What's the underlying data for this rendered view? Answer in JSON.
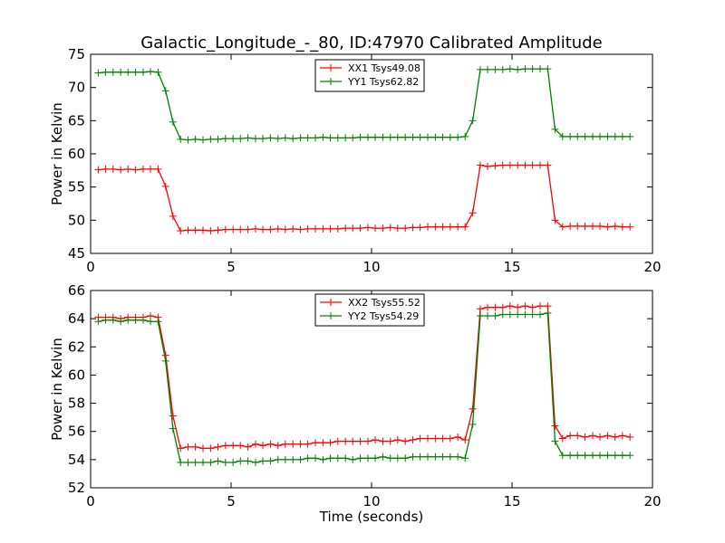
{
  "chart_data": [
    {
      "type": "line",
      "title": "Galactic_Longitude_-_80, ID:47970 Calibrated Amplitude",
      "xlabel": "",
      "ylabel": "Power in Kelvin",
      "xlim": [
        0,
        20
      ],
      "ylim": [
        45,
        75
      ],
      "xticks": [
        "0",
        "5",
        "10",
        "15",
        "20"
      ],
      "yticks": [
        "45",
        "50",
        "55",
        "60",
        "65",
        "70",
        "75"
      ],
      "grid": false,
      "legend_position": "top-center",
      "series": [
        {
          "name": "XX1 Tsys49.08",
          "color": "#ff0000",
          "x": [
            0.27,
            0.53,
            0.8,
            1.07,
            1.33,
            1.6,
            1.87,
            2.13,
            2.4,
            2.67,
            2.93,
            3.2,
            3.47,
            3.73,
            4.0,
            4.27,
            4.53,
            4.8,
            5.07,
            5.33,
            5.6,
            5.87,
            6.13,
            6.4,
            6.67,
            6.93,
            7.2,
            7.47,
            7.73,
            8.0,
            8.27,
            8.53,
            8.8,
            9.07,
            9.33,
            9.6,
            9.87,
            10.13,
            10.4,
            10.67,
            10.93,
            11.2,
            11.47,
            11.73,
            12.0,
            12.27,
            12.53,
            12.8,
            13.07,
            13.33,
            13.6,
            13.87,
            14.13,
            14.4,
            14.67,
            14.93,
            15.2,
            15.47,
            15.73,
            16.0,
            16.27,
            16.53,
            16.8,
            17.07,
            17.33,
            17.6,
            17.87,
            18.13,
            18.4,
            18.67,
            18.93,
            19.2
          ],
          "y": [
            57.6,
            57.7,
            57.7,
            57.6,
            57.7,
            57.6,
            57.7,
            57.7,
            57.7,
            55.1,
            50.6,
            48.4,
            48.5,
            48.5,
            48.5,
            48.4,
            48.5,
            48.6,
            48.6,
            48.6,
            48.6,
            48.7,
            48.6,
            48.6,
            48.7,
            48.6,
            48.7,
            48.6,
            48.7,
            48.7,
            48.7,
            48.7,
            48.7,
            48.8,
            48.8,
            48.8,
            48.9,
            48.8,
            48.8,
            48.9,
            48.8,
            48.8,
            48.9,
            48.9,
            49.0,
            49.0,
            49.0,
            49.0,
            49.0,
            49.0,
            51.1,
            58.3,
            58.1,
            58.2,
            58.3,
            58.3,
            58.3,
            58.3,
            58.3,
            58.3,
            58.3,
            50.0,
            49.0,
            49.1,
            49.1,
            49.1,
            49.1,
            49.1,
            49.0,
            49.1,
            49.0,
            49.0
          ]
        },
        {
          "name": "YY1 Tsys62.82",
          "color": "#008000",
          "x": [
            0.27,
            0.53,
            0.8,
            1.07,
            1.33,
            1.6,
            1.87,
            2.13,
            2.4,
            2.67,
            2.93,
            3.2,
            3.47,
            3.73,
            4.0,
            4.27,
            4.53,
            4.8,
            5.07,
            5.33,
            5.6,
            5.87,
            6.13,
            6.4,
            6.67,
            6.93,
            7.2,
            7.47,
            7.73,
            8.0,
            8.27,
            8.53,
            8.8,
            9.07,
            9.33,
            9.6,
            9.87,
            10.13,
            10.4,
            10.67,
            10.93,
            11.2,
            11.47,
            11.73,
            12.0,
            12.27,
            12.53,
            12.8,
            13.07,
            13.33,
            13.6,
            13.87,
            14.13,
            14.4,
            14.67,
            14.93,
            15.2,
            15.47,
            15.73,
            16.0,
            16.27,
            16.53,
            16.8,
            17.07,
            17.33,
            17.6,
            17.87,
            18.13,
            18.4,
            18.67,
            18.93,
            19.2
          ],
          "y": [
            72.2,
            72.3,
            72.3,
            72.3,
            72.3,
            72.3,
            72.3,
            72.4,
            72.3,
            69.5,
            64.8,
            62.2,
            62.1,
            62.2,
            62.1,
            62.2,
            62.2,
            62.3,
            62.3,
            62.3,
            62.4,
            62.3,
            62.3,
            62.4,
            62.3,
            62.4,
            62.3,
            62.4,
            62.4,
            62.4,
            62.5,
            62.4,
            62.4,
            62.4,
            62.4,
            62.5,
            62.5,
            62.5,
            62.5,
            62.5,
            62.5,
            62.5,
            62.5,
            62.5,
            62.5,
            62.5,
            62.5,
            62.5,
            62.5,
            62.6,
            65.0,
            72.7,
            72.7,
            72.7,
            72.7,
            72.8,
            72.7,
            72.8,
            72.8,
            72.8,
            72.8,
            63.7,
            62.6,
            62.6,
            62.6,
            62.6,
            62.6,
            62.6,
            62.6,
            62.6,
            62.6,
            62.6
          ]
        }
      ]
    },
    {
      "type": "line",
      "title": "",
      "xlabel": "Time (seconds)",
      "ylabel": "Power in Kelvin",
      "xlim": [
        0,
        20
      ],
      "ylim": [
        52,
        66
      ],
      "xticks": [
        "0",
        "5",
        "10",
        "15",
        "20"
      ],
      "yticks": [
        "52",
        "54",
        "56",
        "58",
        "60",
        "62",
        "64",
        "66"
      ],
      "grid": false,
      "legend_position": "top-center",
      "series": [
        {
          "name": "XX2 Tsys55.52",
          "color": "#ff0000",
          "x": [
            0.27,
            0.53,
            0.8,
            1.07,
            1.33,
            1.6,
            1.87,
            2.13,
            2.4,
            2.67,
            2.93,
            3.2,
            3.47,
            3.73,
            4.0,
            4.27,
            4.53,
            4.8,
            5.07,
            5.33,
            5.6,
            5.87,
            6.13,
            6.4,
            6.67,
            6.93,
            7.2,
            7.47,
            7.73,
            8.0,
            8.27,
            8.53,
            8.8,
            9.07,
            9.33,
            9.6,
            9.87,
            10.13,
            10.4,
            10.67,
            10.93,
            11.2,
            11.47,
            11.73,
            12.0,
            12.27,
            12.53,
            12.8,
            13.07,
            13.33,
            13.6,
            13.87,
            14.13,
            14.4,
            14.67,
            14.93,
            15.2,
            15.47,
            15.73,
            16.0,
            16.27,
            16.53,
            16.8,
            17.07,
            17.33,
            17.6,
            17.87,
            18.13,
            18.4,
            18.67,
            18.93,
            19.2
          ],
          "y": [
            64.1,
            64.1,
            64.1,
            64.0,
            64.1,
            64.1,
            64.1,
            64.2,
            64.1,
            61.4,
            57.1,
            54.8,
            54.9,
            54.9,
            54.8,
            54.8,
            54.9,
            55.0,
            55.0,
            55.0,
            54.9,
            55.1,
            55.0,
            55.1,
            55.0,
            55.1,
            55.1,
            55.1,
            55.1,
            55.2,
            55.2,
            55.2,
            55.3,
            55.3,
            55.3,
            55.3,
            55.3,
            55.4,
            55.3,
            55.3,
            55.4,
            55.3,
            55.4,
            55.5,
            55.5,
            55.5,
            55.5,
            55.5,
            55.6,
            55.4,
            57.6,
            64.7,
            64.8,
            64.8,
            64.8,
            64.9,
            64.8,
            64.9,
            64.8,
            64.9,
            64.9,
            56.4,
            55.5,
            55.7,
            55.7,
            55.6,
            55.7,
            55.6,
            55.7,
            55.6,
            55.7,
            55.6
          ]
        },
        {
          "name": "YY2 Tsys54.29",
          "color": "#008000",
          "x": [
            0.27,
            0.53,
            0.8,
            1.07,
            1.33,
            1.6,
            1.87,
            2.13,
            2.4,
            2.67,
            2.93,
            3.2,
            3.47,
            3.73,
            4.0,
            4.27,
            4.53,
            4.8,
            5.07,
            5.33,
            5.6,
            5.87,
            6.13,
            6.4,
            6.67,
            6.93,
            7.2,
            7.47,
            7.73,
            8.0,
            8.27,
            8.53,
            8.8,
            9.07,
            9.33,
            9.6,
            9.87,
            10.13,
            10.4,
            10.67,
            10.93,
            11.2,
            11.47,
            11.73,
            12.0,
            12.27,
            12.53,
            12.8,
            13.07,
            13.33,
            13.6,
            13.87,
            14.13,
            14.4,
            14.67,
            14.93,
            15.2,
            15.47,
            15.73,
            16.0,
            16.27,
            16.53,
            16.8,
            17.07,
            17.33,
            17.6,
            17.87,
            18.13,
            18.4,
            18.67,
            18.93,
            19.2
          ],
          "y": [
            63.8,
            63.9,
            63.9,
            63.8,
            63.9,
            63.9,
            63.9,
            63.8,
            63.8,
            61.0,
            56.2,
            53.8,
            53.8,
            53.8,
            53.8,
            53.8,
            53.9,
            53.8,
            53.8,
            53.9,
            53.9,
            53.8,
            53.9,
            53.9,
            54.0,
            54.0,
            54.0,
            54.0,
            54.1,
            54.1,
            54.0,
            54.1,
            54.1,
            54.1,
            54.0,
            54.1,
            54.1,
            54.1,
            54.2,
            54.1,
            54.1,
            54.1,
            54.2,
            54.2,
            54.2,
            54.2,
            54.2,
            54.2,
            54.2,
            54.1,
            56.5,
            64.2,
            64.2,
            64.2,
            64.3,
            64.3,
            64.3,
            64.3,
            64.3,
            64.3,
            64.4,
            55.3,
            54.3,
            54.3,
            54.3,
            54.3,
            54.3,
            54.3,
            54.3,
            54.3,
            54.3,
            54.3
          ]
        }
      ]
    }
  ]
}
